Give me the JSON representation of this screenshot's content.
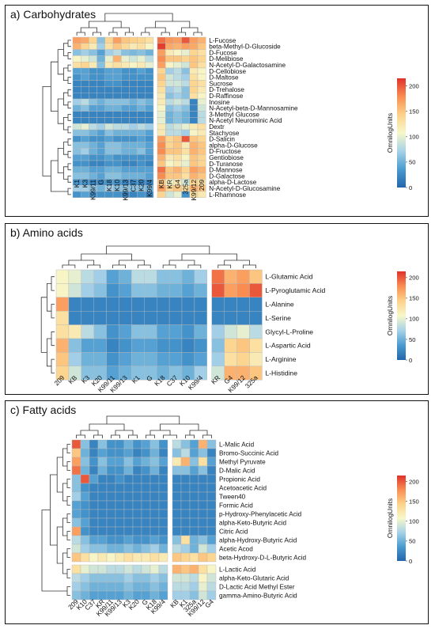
{
  "colorbar": {
    "stops": [
      "#2166ac",
      "#4a9bd0",
      "#a6d2e8",
      "#f7f7c9",
      "#fdd28a",
      "#f98e52",
      "#e0312a"
    ],
    "ticks": [
      0,
      50,
      100,
      150,
      200
    ],
    "min": 0,
    "max": 215,
    "label": "OmnilogUnits"
  },
  "chart_data": [
    {
      "type": "heatmap",
      "title": "a) Carbohydrates",
      "columns": [
        "K1",
        "K3",
        "K99/11",
        "G",
        "K18",
        "K10",
        "K99/13",
        "C37",
        "K20",
        "K99/4",
        "KB",
        "KR",
        "G4",
        "325a",
        "K99/12",
        "209"
      ],
      "rows": [
        "L-Fucose",
        "beta-Methyl-D-Glucoside",
        "D-Fucose",
        "D-Melibiose",
        "N-Acetyl-D-Galactosamine",
        "D-Cellobiose",
        "D-Maltose",
        "Sucrose",
        "D-Trehalose",
        "D-Raffinose",
        "Inosine",
        "N-Acetyl-beta-D-Mannosamine",
        "3-Methyl Glucose",
        "N-Acetyl Neurominic Acid",
        "Dextr",
        "Stachyose",
        "D-Salicin",
        "alpha-D-Glucose",
        "D-Fructose",
        "Gentiobiose",
        "D-Turanose",
        "D-Mannose",
        "D-Galactose",
        "alpha-D-Lactose",
        "N-Acetyl-D-Glucosamine",
        "L-Rhamnose"
      ],
      "values": [
        [
          170,
          165,
          140,
          60,
          140,
          170,
          150,
          145,
          140,
          130,
          190,
          175,
          170,
          200,
          170,
          160
        ],
        [
          160,
          140,
          120,
          70,
          130,
          150,
          135,
          120,
          130,
          110,
          210,
          165,
          160,
          170,
          165,
          150
        ],
        [
          60,
          70,
          60,
          40,
          70,
          80,
          60,
          55,
          60,
          50,
          170,
          120,
          110,
          100,
          140,
          130
        ],
        [
          110,
          100,
          90,
          50,
          100,
          160,
          100,
          90,
          100,
          80,
          180,
          150,
          150,
          140,
          150,
          140
        ],
        [
          130,
          140,
          120,
          60,
          120,
          130,
          120,
          110,
          120,
          100,
          170,
          110,
          100,
          90,
          150,
          130
        ],
        [
          40,
          40,
          30,
          30,
          40,
          40,
          30,
          30,
          40,
          30,
          140,
          70,
          80,
          60,
          120,
          110
        ],
        [
          30,
          40,
          30,
          30,
          40,
          40,
          30,
          30,
          30,
          30,
          150,
          90,
          80,
          70,
          130,
          110
        ],
        [
          20,
          20,
          20,
          20,
          30,
          30,
          20,
          20,
          20,
          20,
          140,
          90,
          90,
          80,
          140,
          130
        ],
        [
          20,
          20,
          20,
          20,
          20,
          20,
          20,
          20,
          20,
          20,
          130,
          70,
          80,
          60,
          140,
          120
        ],
        [
          20,
          20,
          20,
          20,
          20,
          20,
          20,
          20,
          20,
          20,
          120,
          60,
          70,
          60,
          130,
          110
        ],
        [
          70,
          80,
          60,
          50,
          60,
          60,
          60,
          50,
          60,
          50,
          120,
          80,
          90,
          80,
          20,
          100
        ],
        [
          50,
          60,
          40,
          40,
          50,
          50,
          40,
          40,
          50,
          40,
          110,
          60,
          70,
          60,
          20,
          90
        ],
        [
          20,
          20,
          20,
          20,
          20,
          20,
          20,
          20,
          20,
          20,
          100,
          50,
          60,
          50,
          20,
          80
        ],
        [
          20,
          20,
          20,
          20,
          20,
          20,
          20,
          20,
          20,
          20,
          100,
          50,
          60,
          50,
          20,
          80
        ],
        [
          90,
          100,
          80,
          70,
          90,
          80,
          80,
          70,
          80,
          70,
          120,
          80,
          90,
          100,
          120,
          130
        ],
        [
          60,
          60,
          50,
          40,
          60,
          50,
          50,
          50,
          50,
          40,
          120,
          80,
          80,
          70,
          110,
          120
        ],
        [
          30,
          40,
          30,
          30,
          40,
          30,
          30,
          30,
          40,
          30,
          170,
          140,
          150,
          200,
          150,
          140
        ],
        [
          60,
          60,
          50,
          40,
          60,
          60,
          50,
          50,
          50,
          40,
          180,
          140,
          150,
          120,
          160,
          150
        ],
        [
          60,
          70,
          50,
          40,
          60,
          60,
          50,
          50,
          60,
          40,
          180,
          150,
          150,
          130,
          160,
          150
        ],
        [
          40,
          40,
          30,
          30,
          40,
          30,
          30,
          30,
          30,
          30,
          160,
          120,
          130,
          110,
          150,
          140
        ],
        [
          30,
          30,
          20,
          20,
          30,
          30,
          20,
          20,
          30,
          20,
          150,
          110,
          120,
          100,
          150,
          140
        ],
        [
          50,
          50,
          40,
          40,
          50,
          50,
          40,
          40,
          40,
          40,
          190,
          150,
          160,
          140,
          170,
          160
        ],
        [
          60,
          60,
          50,
          40,
          60,
          60,
          50,
          50,
          50,
          40,
          180,
          150,
          150,
          130,
          160,
          150
        ],
        [
          30,
          30,
          20,
          20,
          30,
          30,
          20,
          20,
          20,
          20,
          150,
          110,
          120,
          90,
          140,
          130
        ],
        [
          70,
          70,
          60,
          50,
          70,
          60,
          60,
          60,
          60,
          50,
          170,
          140,
          150,
          130,
          160,
          150
        ],
        [
          30,
          40,
          30,
          30,
          30,
          30,
          20,
          20,
          30,
          20,
          140,
          90,
          100,
          30,
          130,
          120
        ]
      ],
      "column_split_after": 9,
      "row_split_after": -1,
      "xtick_rotation": -90,
      "ylim": [
        0,
        200
      ]
    },
    {
      "type": "heatmap",
      "title": "b) Amino acids",
      "columns": [
        "209",
        "KB",
        "K3",
        "K20",
        "K99/11",
        "K99/13",
        "K1",
        "G",
        "K18",
        "C37",
        "K10",
        "K99/4",
        "KR",
        "G4",
        "K99/12",
        "325a"
      ],
      "rows": [
        "L-Glutamic Acid",
        "L-Pyroglutamic Acid",
        "L-Alanine",
        "L-Serine",
        "Glycyl-L-Proline",
        "L-Aspartic Acid",
        "L-Arginine",
        "L-Histidine"
      ],
      "values": [
        [
          110,
          100,
          80,
          70,
          40,
          50,
          80,
          80,
          60,
          60,
          50,
          70,
          190,
          160,
          170,
          150
        ],
        [
          110,
          90,
          70,
          60,
          30,
          40,
          60,
          60,
          50,
          50,
          40,
          50,
          200,
          170,
          180,
          200
        ],
        [
          170,
          20,
          20,
          20,
          20,
          20,
          20,
          20,
          20,
          20,
          20,
          20,
          20,
          20,
          20,
          20
        ],
        [
          130,
          20,
          20,
          20,
          20,
          20,
          20,
          20,
          20,
          20,
          20,
          20,
          20,
          20,
          20,
          20
        ],
        [
          130,
          120,
          80,
          60,
          30,
          40,
          60,
          60,
          40,
          40,
          30,
          50,
          70,
          90,
          100,
          80
        ],
        [
          160,
          60,
          40,
          40,
          20,
          30,
          40,
          40,
          30,
          30,
          20,
          30,
          60,
          140,
          150,
          130
        ],
        [
          150,
          70,
          50,
          50,
          30,
          40,
          50,
          50,
          40,
          40,
          30,
          40,
          70,
          130,
          140,
          120
        ],
        [
          140,
          90,
          60,
          60,
          40,
          50,
          60,
          60,
          50,
          60,
          50,
          70,
          90,
          160,
          160,
          150
        ]
      ],
      "column_split_after": 11,
      "row_split_after": -1,
      "xtick_rotation": -45,
      "ylim": [
        0,
        200
      ]
    },
    {
      "type": "heatmap",
      "title": "c) Fatty acids",
      "columns": [
        "209",
        "K10",
        "C37",
        "KR",
        "K99/11",
        "K99/13",
        "K3",
        "K20",
        "G",
        "K18",
        "K99/4",
        "KB",
        "K1",
        "325a",
        "K99/12",
        "G4"
      ],
      "rows": [
        "L-Malic Acid",
        "Bromo-Succinic Acid",
        "Methyl Pyruvate",
        "D-Malic Acid",
        "Propionic Acid",
        "Acetoacetic Acid",
        "Tween40",
        "Formic Acid",
        "p-Hydroxy-Phenylacetic Acid",
        "alpha-Keto-Butyric Acid",
        "Citric Acid",
        "alpha-Hydroxy-Butyric Acid",
        "Acetic Acod",
        "beta-Hydroxy-D-L-Butyric Acid",
        "L-Lactic Acid",
        "alpha-Keto-Glutaric Acid",
        "D-Lactic Acid Methyl Ester",
        "gamma-Amino-Butyric Acid"
      ],
      "values": [
        [
          200,
          60,
          20,
          60,
          30,
          30,
          50,
          30,
          40,
          60,
          30,
          80,
          60,
          40,
          160,
          60
        ],
        [
          150,
          50,
          20,
          40,
          30,
          30,
          40,
          20,
          30,
          50,
          20,
          60,
          80,
          40,
          60,
          20
        ],
        [
          170,
          60,
          30,
          60,
          40,
          40,
          60,
          40,
          50,
          60,
          40,
          120,
          160,
          60,
          130,
          40
        ],
        [
          190,
          50,
          20,
          50,
          30,
          30,
          50,
          20,
          30,
          50,
          20,
          60,
          60,
          40,
          60,
          20
        ],
        [
          60,
          200,
          40,
          20,
          20,
          30,
          20,
          20,
          20,
          20,
          20,
          20,
          20,
          20,
          20,
          20
        ],
        [
          60,
          30,
          20,
          20,
          20,
          20,
          20,
          20,
          20,
          20,
          20,
          20,
          20,
          20,
          20,
          20
        ],
        [
          70,
          40,
          20,
          20,
          20,
          20,
          20,
          20,
          20,
          20,
          20,
          20,
          20,
          20,
          20,
          20
        ],
        [
          40,
          30,
          20,
          20,
          20,
          20,
          20,
          20,
          20,
          20,
          20,
          20,
          20,
          20,
          20,
          20
        ],
        [
          40,
          30,
          20,
          20,
          20,
          20,
          20,
          20,
          20,
          20,
          20,
          20,
          20,
          20,
          20,
          20
        ],
        [
          60,
          40,
          20,
          20,
          20,
          20,
          20,
          20,
          20,
          20,
          20,
          20,
          20,
          20,
          20,
          20
        ],
        [
          170,
          30,
          20,
          20,
          20,
          20,
          20,
          20,
          20,
          20,
          20,
          20,
          20,
          20,
          20,
          20
        ],
        [
          80,
          60,
          40,
          40,
          30,
          30,
          40,
          30,
          30,
          40,
          30,
          60,
          130,
          50,
          60,
          40
        ],
        [
          90,
          70,
          60,
          60,
          50,
          50,
          60,
          50,
          60,
          70,
          50,
          80,
          70,
          50,
          90,
          70
        ],
        [
          150,
          130,
          110,
          120,
          110,
          120,
          130,
          120,
          120,
          130,
          120,
          150,
          140,
          130,
          150,
          140
        ],
        [
          130,
          100,
          90,
          90,
          80,
          80,
          90,
          80,
          90,
          100,
          80,
          160,
          150,
          160,
          130,
          110
        ],
        [
          80,
          70,
          60,
          60,
          60,
          60,
          70,
          60,
          60,
          70,
          60,
          90,
          90,
          80,
          110,
          90
        ],
        [
          70,
          60,
          50,
          50,
          50,
          50,
          60,
          50,
          50,
          60,
          50,
          80,
          80,
          70,
          100,
          80
        ],
        [
          60,
          50,
          40,
          40,
          40,
          40,
          50,
          40,
          40,
          50,
          40,
          70,
          70,
          60,
          90,
          70
        ]
      ],
      "column_split_after": 10,
      "row_split_after": 13,
      "xtick_rotation": -45,
      "ylim": [
        0,
        200
      ]
    }
  ]
}
